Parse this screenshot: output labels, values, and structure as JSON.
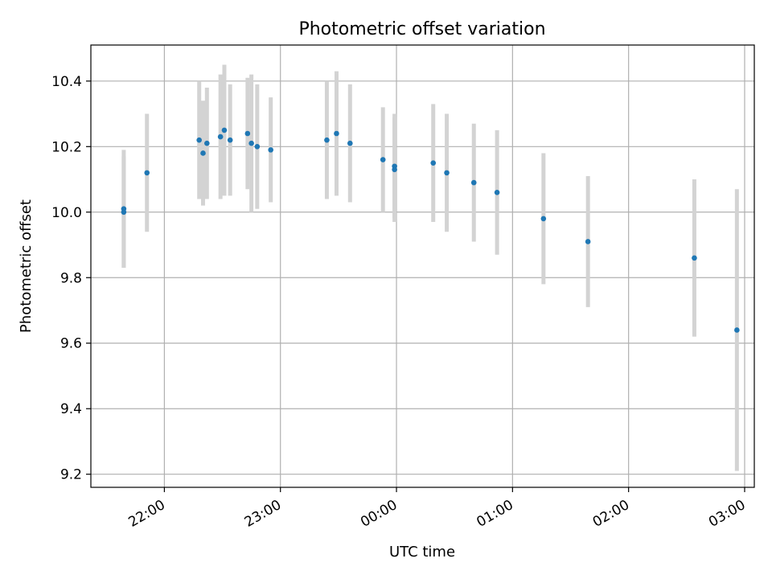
{
  "chart_data": {
    "type": "scatter",
    "title": "Photometric offset variation",
    "xlabel": "UTC time",
    "ylabel": "Photometric offset",
    "xlim": [
      "21:22",
      "03:05"
    ],
    "ylim": [
      9.16,
      10.51
    ],
    "grid": true,
    "x_ticks": [
      "22:00",
      "23:00",
      "00:00",
      "01:00",
      "02:00",
      "03:00"
    ],
    "y_ticks": [
      "9.2",
      "9.4",
      "9.6",
      "9.8",
      "10.0",
      "10.2",
      "10.4"
    ],
    "colors": {
      "points": "#1f77b4",
      "errorbars": "#d3d3d3",
      "grid": "#b0b0b0"
    },
    "points": [
      {
        "time": "21:39",
        "y": 10.01,
        "err": 0.18
      },
      {
        "time": "21:39",
        "y": 10.0,
        "err": 0.17
      },
      {
        "time": "21:51",
        "y": 10.12,
        "err": 0.18
      },
      {
        "time": "22:18",
        "y": 10.22,
        "err": 0.18
      },
      {
        "time": "22:20",
        "y": 10.18,
        "err": 0.16
      },
      {
        "time": "22:22",
        "y": 10.21,
        "err": 0.17
      },
      {
        "time": "22:29",
        "y": 10.23,
        "err": 0.19
      },
      {
        "time": "22:31",
        "y": 10.25,
        "err": 0.2
      },
      {
        "time": "22:34",
        "y": 10.22,
        "err": 0.17
      },
      {
        "time": "22:43",
        "y": 10.24,
        "err": 0.17
      },
      {
        "time": "22:45",
        "y": 10.21,
        "err": 0.21
      },
      {
        "time": "22:48",
        "y": 10.2,
        "err": 0.19
      },
      {
        "time": "22:55",
        "y": 10.19,
        "err": 0.16
      },
      {
        "time": "23:24",
        "y": 10.22,
        "err": 0.18
      },
      {
        "time": "23:29",
        "y": 10.24,
        "err": 0.19
      },
      {
        "time": "23:36",
        "y": 10.21,
        "err": 0.18
      },
      {
        "time": "23:53",
        "y": 10.16,
        "err": 0.16
      },
      {
        "time": "23:59",
        "y": 10.14,
        "err": 0.16
      },
      {
        "time": "23:59",
        "y": 10.13,
        "err": 0.16
      },
      {
        "time": "00:19",
        "y": 10.15,
        "err": 0.18
      },
      {
        "time": "00:26",
        "y": 10.12,
        "err": 0.18
      },
      {
        "time": "00:40",
        "y": 10.09,
        "err": 0.18
      },
      {
        "time": "00:52",
        "y": 10.06,
        "err": 0.19
      },
      {
        "time": "01:16",
        "y": 9.98,
        "err": 0.2
      },
      {
        "time": "01:39",
        "y": 9.91,
        "err": 0.2
      },
      {
        "time": "02:34",
        "y": 9.86,
        "err": 0.24
      },
      {
        "time": "02:56",
        "y": 9.64,
        "err": 0.43
      }
    ]
  }
}
